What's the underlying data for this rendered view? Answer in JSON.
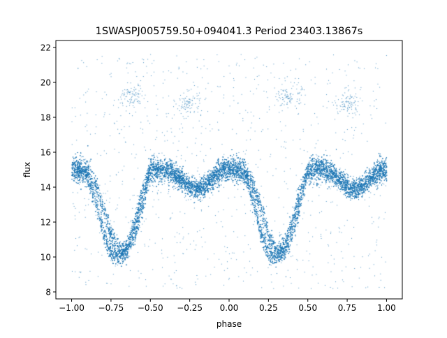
{
  "chart_data": {
    "type": "scatter",
    "title": "1SWASPJ005759.50+094041.3 Period 23403.13867s",
    "xlabel": "phase",
    "ylabel": "flux",
    "xlim": [
      -1.1,
      1.1
    ],
    "ylim": [
      7.6,
      22.4
    ],
    "xticks": [
      -1.0,
      -0.75,
      -0.5,
      -0.25,
      0.0,
      0.25,
      0.5,
      0.75,
      1.0
    ],
    "xtick_labels": [
      "−1.00",
      "−0.75",
      "−0.50",
      "−0.25",
      "0.00",
      "0.25",
      "0.50",
      "0.75",
      "1.00"
    ],
    "yticks": [
      8,
      10,
      12,
      14,
      16,
      18,
      20,
      22
    ],
    "ytick_labels": [
      "8",
      "10",
      "12",
      "14",
      "16",
      "18",
      "20",
      "22"
    ],
    "grid": false,
    "legend": "none",
    "marker_color": "#1f77b4",
    "phase_folded": true,
    "period_s": 23403.13867,
    "light_curve": {
      "phase": [
        0.0,
        0.05,
        0.1,
        0.15,
        0.2,
        0.25,
        0.3,
        0.35,
        0.4,
        0.45,
        0.5,
        0.55,
        0.6,
        0.65,
        0.7,
        0.75,
        0.8,
        0.85,
        0.9,
        0.95,
        1.0
      ],
      "flux_baseline": [
        15.0,
        15.0,
        14.7,
        13.2,
        11.4,
        10.2,
        10.0,
        10.6,
        12.0,
        13.8,
        15.0,
        15.0,
        15.0,
        14.8,
        14.4,
        14.0,
        13.9,
        14.1,
        14.6,
        15.0,
        15.0
      ],
      "flux_second_branch": [
        15.0,
        15.0,
        14.9,
        14.2,
        12.8,
        11.2,
        10.3,
        10.4,
        11.3,
        13.0,
        15.0,
        15.0,
        15.0,
        14.8,
        14.4,
        14.0,
        13.9,
        14.1,
        14.6,
        15.0,
        15.0
      ]
    },
    "outlier_clumps": [
      {
        "phase": -0.62,
        "flux": 19.2
      },
      {
        "phase": 0.38,
        "flux": 19.2
      },
      {
        "phase": -0.26,
        "flux": 18.8
      },
      {
        "phase": 0.75,
        "flux": 18.8
      }
    ]
  }
}
